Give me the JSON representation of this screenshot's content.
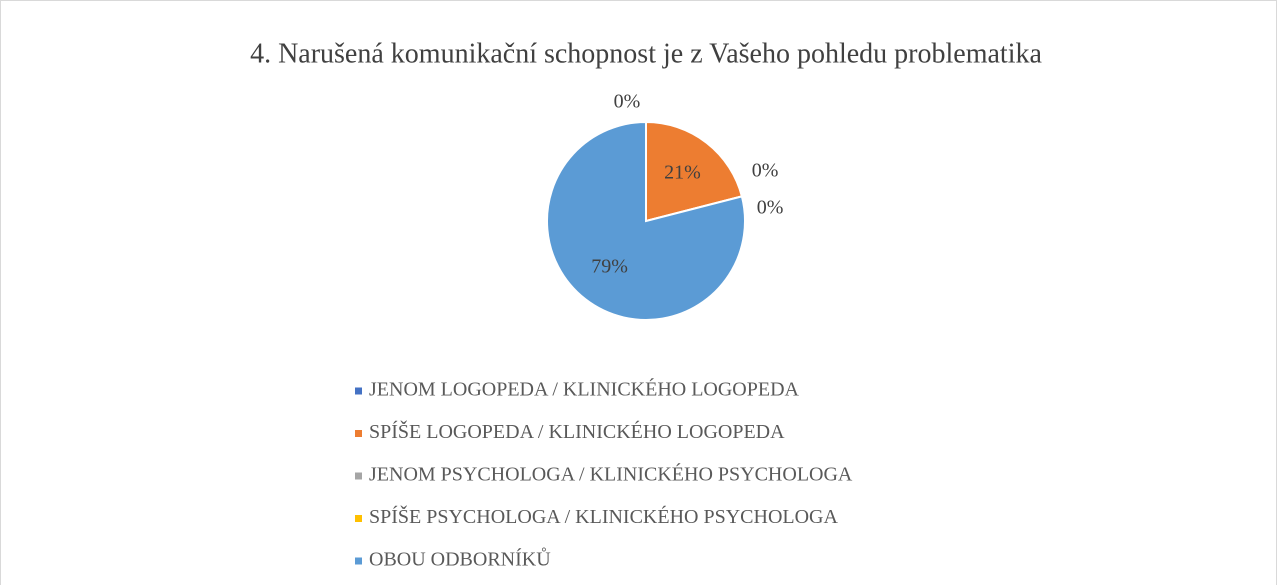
{
  "chart_data": {
    "type": "pie",
    "title": "4. Narušená komunikační schopnost je z Vašeho pohledu problematika",
    "categories": [
      "JENOM LOGOPEDA / KLINICKÉHO LOGOPEDA",
      "SPÍŠE LOGOPEDA / KLINICKÉHO LOGOPEDA",
      "JENOM PSYCHOLOGA / KLINICKÉHO PSYCHOLOGA",
      "SPÍŠE PSYCHOLOGA / KLINICKÉHO PSYCHOLOGA",
      "OBOU ODBORNÍKŮ"
    ],
    "values": [
      0,
      21,
      0,
      0,
      79
    ],
    "value_labels": [
      "0%",
      "21%",
      "0%",
      "0%",
      "79%"
    ],
    "colors": [
      "#4472c4",
      "#ed7d31",
      "#a5a5a5",
      "#ffc000",
      "#5b9bd5"
    ],
    "legend": "bottom"
  }
}
